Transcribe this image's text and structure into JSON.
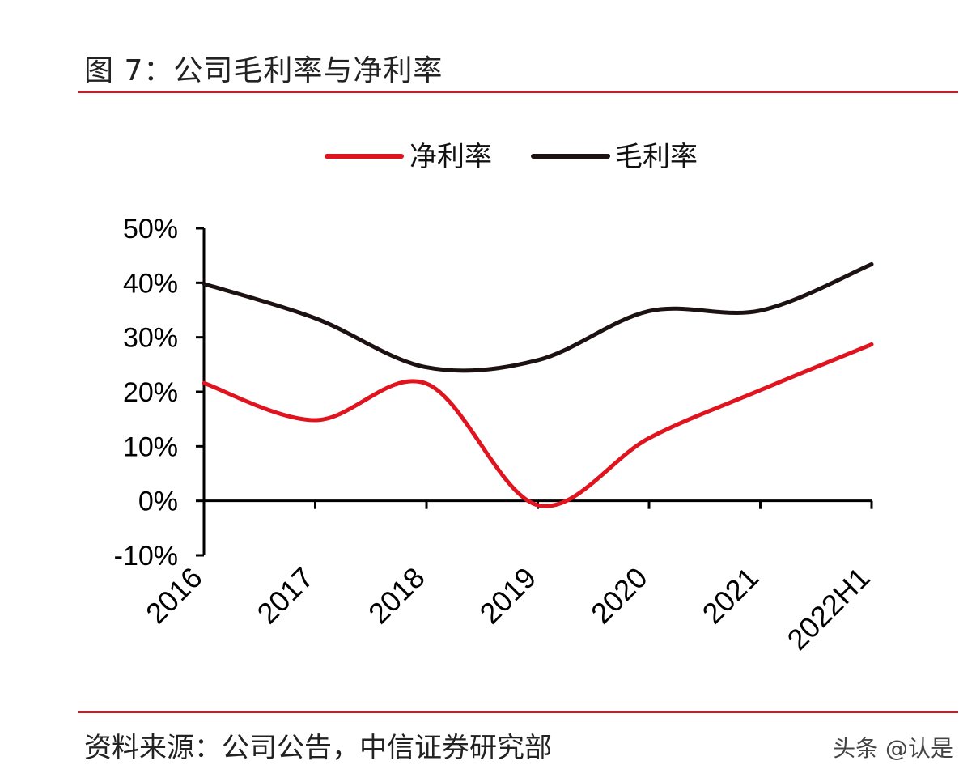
{
  "header": {
    "title": "图 7：公司毛利率与净利率"
  },
  "footer": {
    "source": "资料来源：公司公告，中信证券研究部",
    "watermark": "头条 @认是"
  },
  "colors": {
    "net_margin": "#e0141e",
    "gross_margin": "#1c1212",
    "rule": "#c0202a",
    "axis": "#000000"
  },
  "chart_data": {
    "type": "line",
    "title": "",
    "xlabel": "",
    "ylabel": "",
    "categories": [
      "2016",
      "2017",
      "2018",
      "2019",
      "2020",
      "2021",
      "2022H1"
    ],
    "ylim": [
      -10,
      50
    ],
    "yticks": [
      -10,
      0,
      10,
      20,
      30,
      40,
      50
    ],
    "ytick_labels": [
      "-10%",
      "0%",
      "10%",
      "20%",
      "30%",
      "40%",
      "50%"
    ],
    "legend_position": "top-center",
    "series": [
      {
        "name": "净利率",
        "color_key": "net_margin",
        "values": [
          21.6,
          14.8,
          21.5,
          -0.8,
          11.5,
          20.3,
          28.7
        ]
      },
      {
        "name": "毛利率",
        "color_key": "gross_margin",
        "values": [
          39.8,
          33.5,
          24.5,
          25.8,
          34.8,
          34.9,
          43.4
        ]
      }
    ]
  }
}
